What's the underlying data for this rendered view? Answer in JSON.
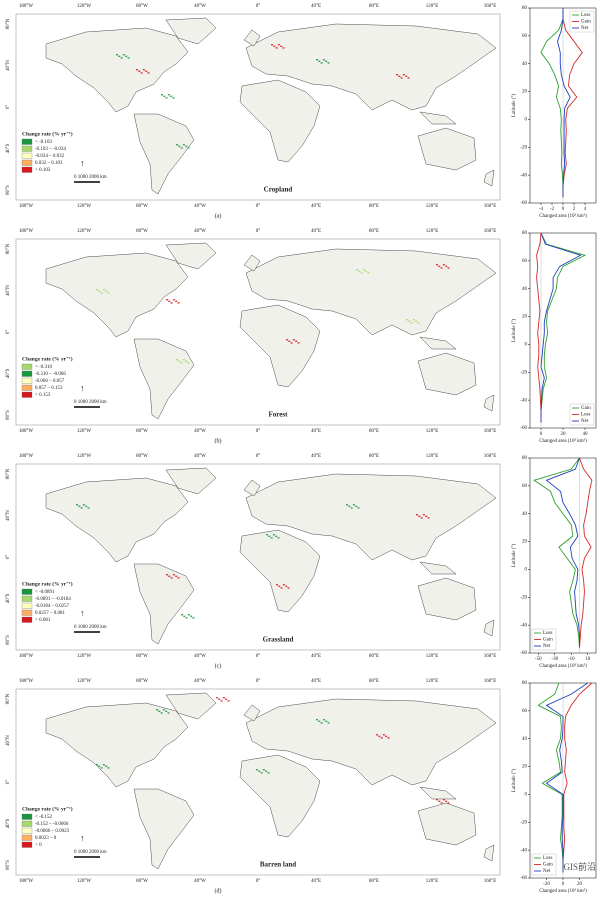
{
  "lon_labels": [
    "180°W",
    "120°W",
    "80°W",
    "40°W",
    "0°",
    "40°E",
    "80°E",
    "120°E",
    "160°E"
  ],
  "lat_labels": [
    "80°N",
    "40°N",
    "0°",
    "40°S",
    "80°S"
  ],
  "maps": [
    {
      "name": "Cropland",
      "panel": "(a)",
      "legend_title": "Change rate (% yr⁻¹)",
      "legend": [
        "< -0.103",
        "-0.103 – -0.034",
        "-0.034 – 0.032",
        "0.032 – 0.103",
        "> 0.103"
      ],
      "legend_colors": [
        "#1a9641",
        "#a6d96a",
        "#ffffbf",
        "#fdae61",
        "#d7191c"
      ],
      "scale": "0  1000 2000 km"
    },
    {
      "name": "Forest",
      "panel": "(b)",
      "legend_title": "Change rate (% yr⁻¹)",
      "legend": [
        "< -0.310",
        "-0.310 – -0.066",
        "-0.066 – 0.057",
        "0.057 – 0.153",
        "> 0.153"
      ],
      "legend_colors": [
        "#a6d96a",
        "#1a9641",
        "#ffffbf",
        "#fdae61",
        "#d7191c"
      ],
      "scale": "0  1000 2000 km"
    },
    {
      "name": "Grassland",
      "panel": "(c)",
      "legend_title": "Change rate (% yr⁻¹)",
      "legend": [
        "< -0.0891",
        "-0.0891 – -0.0184",
        "-0.0184 – 0.0257",
        "0.0257 – 0.081",
        "> 0.081"
      ],
      "legend_colors": [
        "#1a9641",
        "#a6d96a",
        "#ffffbf",
        "#fdae61",
        "#d7191c"
      ],
      "scale": "0  1000 2000 km"
    },
    {
      "name": "Barren land",
      "panel": "(d)",
      "legend_title": "Change rate (% yr⁻¹)",
      "legend": [
        "< -0.152",
        "-0.152 – -0.0066",
        "-0.0066 – 0.0023",
        "0.0023 – 0",
        "> 0"
      ],
      "legend_colors": [
        "#1a9641",
        "#a6d96a",
        "#ffffbf",
        "#fdae61",
        "#d7191c"
      ],
      "scale": "0  1000 2000 km"
    }
  ],
  "watermark": "GIS前沿",
  "chart_data": [
    {
      "type": "line",
      "xlabel": "Changed area (10³ km²)",
      "ylabel": "Latitude (°)",
      "xlim": [
        -6,
        6
      ],
      "xticks": [
        -4,
        -2,
        0,
        2,
        4
      ],
      "ylim": [
        -60,
        80
      ],
      "yticks": [
        -60,
        -40,
        -20,
        0,
        20,
        40,
        60,
        80
      ],
      "legend": "upper right",
      "latitudes": [
        -56,
        -48,
        -40,
        -32,
        -24,
        -16,
        -8,
        0,
        8,
        16,
        24,
        32,
        40,
        48,
        56,
        64,
        72,
        80
      ],
      "series": [
        {
          "name": "Loss",
          "color": "#2ca02c",
          "values": [
            0,
            0,
            -0.1,
            -0.3,
            -0.2,
            -0.3,
            -0.4,
            -0.3,
            -0.5,
            -1.2,
            -0.8,
            -1.5,
            -2.5,
            -4,
            -3,
            -0.8,
            0,
            0
          ]
        },
        {
          "name": "Gain",
          "color": "#d62728",
          "values": [
            0,
            0,
            0.2,
            0.6,
            0.4,
            0.5,
            0.6,
            0.5,
            0.8,
            2.5,
            1,
            1.2,
            2,
            3.5,
            2,
            0.5,
            0,
            0
          ]
        },
        {
          "name": "Net",
          "color": "#1f3fbf",
          "values": [
            0,
            0,
            0.1,
            0.3,
            0.2,
            0.2,
            0.2,
            0.2,
            0.3,
            1.3,
            0.2,
            -0.3,
            -0.5,
            -0.5,
            -1,
            -0.3,
            0,
            0
          ]
        }
      ]
    },
    {
      "type": "line",
      "xlabel": "Changed area (10³ km²)",
      "ylabel": "Latitude (°)",
      "xlim": [
        -10,
        50
      ],
      "xticks": [
        0,
        20,
        40
      ],
      "ylim": [
        -60,
        80
      ],
      "yticks": [
        -60,
        -40,
        -20,
        0,
        20,
        40,
        60,
        80
      ],
      "legend": "lower right",
      "latitudes": [
        -56,
        -48,
        -40,
        -32,
        -24,
        -16,
        -8,
        0,
        8,
        16,
        24,
        32,
        40,
        48,
        56,
        64,
        72,
        80
      ],
      "series": [
        {
          "name": "Gain",
          "color": "#2ca02c",
          "values": [
            0,
            0,
            1,
            2,
            5,
            3,
            3,
            4,
            6,
            5,
            6,
            10,
            14,
            15,
            20,
            40,
            5,
            0
          ]
        },
        {
          "name": "Loss",
          "color": "#d62728",
          "values": [
            0,
            0,
            -0.5,
            -1,
            -2,
            -3,
            -2,
            -2,
            -3,
            -2,
            -1,
            -2,
            -3,
            -4,
            -3,
            -4,
            -1,
            0
          ]
        },
        {
          "name": "Net",
          "color": "#1f3fbf",
          "values": [
            0,
            0,
            0.5,
            1,
            3,
            0,
            1,
            2,
            3,
            3,
            5,
            8,
            11,
            11,
            17,
            36,
            4,
            0
          ]
        }
      ]
    },
    {
      "type": "line",
      "xlabel": "Changed area (10³ km²)",
      "ylabel": "Latitude (°)",
      "xlim": [
        -60,
        20
      ],
      "xticks": [
        -50,
        -30,
        -10,
        10
      ],
      "ylim": [
        -60,
        80
      ],
      "yticks": [
        -60,
        -40,
        -20,
        0,
        20,
        40,
        60,
        80
      ],
      "legend": "lower left",
      "latitudes": [
        -56,
        -48,
        -40,
        -32,
        -24,
        -16,
        -8,
        0,
        8,
        16,
        24,
        32,
        40,
        48,
        56,
        64,
        72,
        80
      ],
      "series": [
        {
          "name": "Loss",
          "color": "#2ca02c",
          "values": [
            0,
            -1,
            -3,
            -8,
            -10,
            -12,
            -8,
            -5,
            -15,
            -25,
            -8,
            -10,
            -20,
            -30,
            -35,
            -55,
            -10,
            0
          ]
        },
        {
          "name": "Gain",
          "color": "#d62728",
          "values": [
            0,
            1,
            2,
            4,
            5,
            6,
            5,
            3,
            6,
            14,
            6,
            5,
            8,
            10,
            12,
            15,
            5,
            0
          ]
        },
        {
          "name": "Net",
          "color": "#1f3fbf",
          "values": [
            0,
            0,
            -1,
            -4,
            -5,
            -6,
            -3,
            -2,
            -9,
            -11,
            -2,
            -5,
            -12,
            -20,
            -23,
            -40,
            -5,
            0
          ]
        }
      ]
    },
    {
      "type": "line",
      "xlabel": "Changed area (10³ km²)",
      "ylabel": "Latitude (°)",
      "xlim": [
        -40,
        40
      ],
      "xticks": [
        -20,
        0,
        20
      ],
      "ylim": [
        -60,
        80
      ],
      "yticks": [
        -60,
        -40,
        -20,
        0,
        20,
        40,
        60,
        80
      ],
      "legend": "lower left",
      "latitudes": [
        -56,
        -48,
        -40,
        -32,
        -24,
        -16,
        -8,
        0,
        8,
        16,
        24,
        32,
        40,
        48,
        56,
        64,
        72,
        80
      ],
      "series": [
        {
          "name": "Loss",
          "color": "#2ca02c",
          "values": [
            0,
            0,
            -1,
            -3,
            -2,
            -1,
            -1,
            -1,
            -25,
            -3,
            -5,
            -8,
            -3,
            -2,
            -3,
            -30,
            -10,
            -5
          ]
        },
        {
          "name": "Gain",
          "color": "#d62728",
          "values": [
            0,
            0,
            1,
            2,
            1,
            1,
            1,
            1,
            5,
            2,
            3,
            4,
            2,
            2,
            3,
            10,
            20,
            35
          ]
        },
        {
          "name": "Net",
          "color": "#1f3fbf",
          "values": [
            0,
            0,
            0,
            -1,
            -1,
            0,
            0,
            0,
            -20,
            -1,
            -2,
            -4,
            -1,
            0,
            0,
            -20,
            10,
            30
          ]
        }
      ]
    }
  ]
}
